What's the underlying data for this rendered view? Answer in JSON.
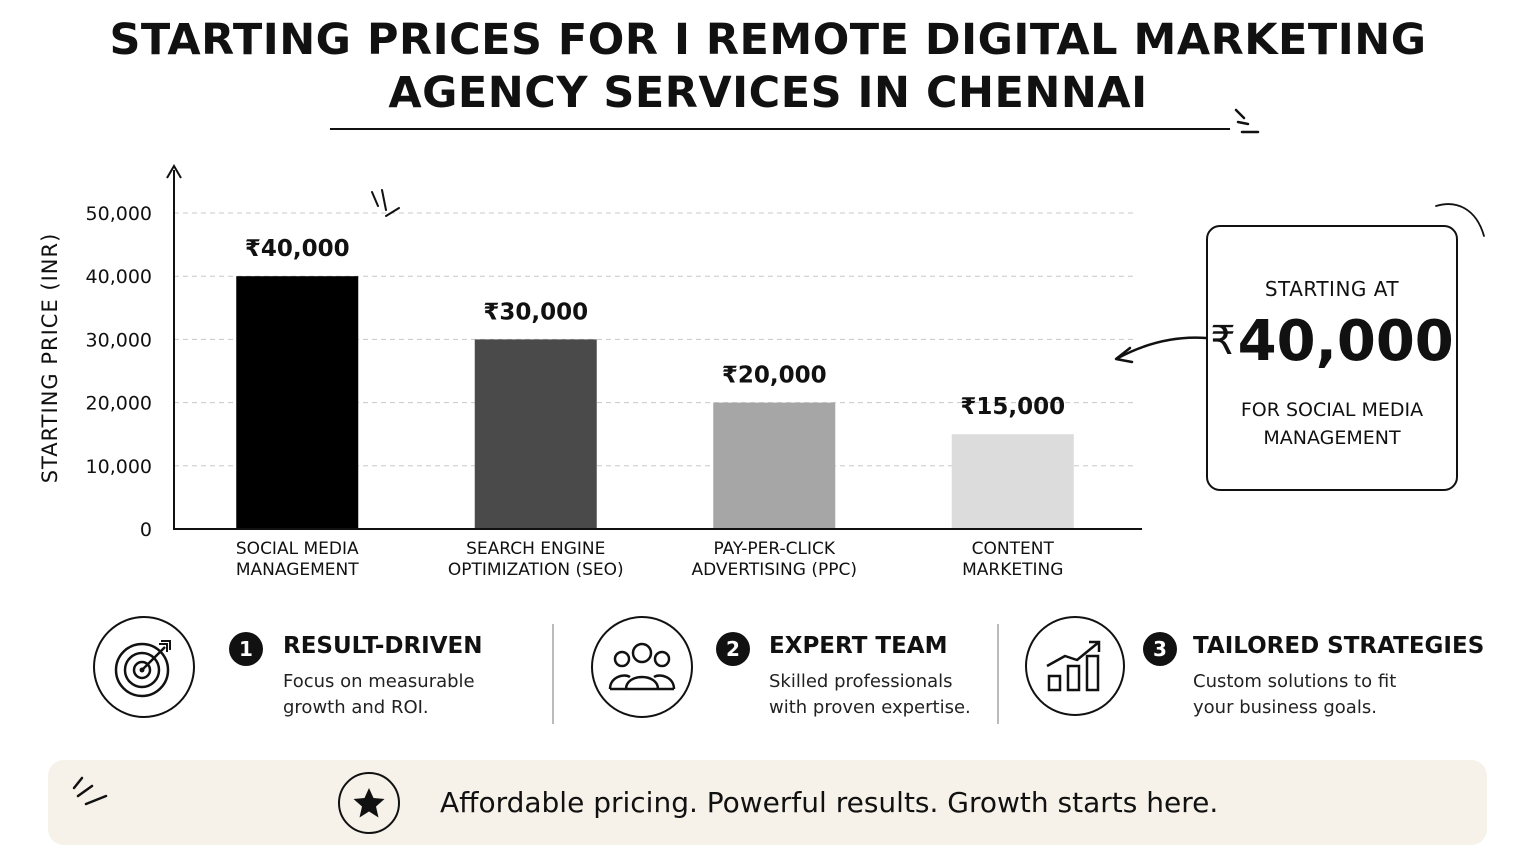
{
  "title_line1": "STARTING PRICES FOR I REMOTE DIGITAL MARKETING",
  "title_line2": "AGENCY SERVICES IN CHENNAI",
  "chart_data": {
    "type": "bar",
    "ylabel": "STARTING PRICE (INR)",
    "ylim": [
      0,
      50000
    ],
    "yticks": [
      0,
      10000,
      20000,
      30000,
      40000,
      50000
    ],
    "ytick_labels": [
      "0",
      "10,000",
      "20,000",
      "30,000",
      "40,000",
      "50,000"
    ],
    "grid": true,
    "categories": [
      [
        "SOCIAL MEDIA",
        "MANAGEMENT"
      ],
      [
        "SEARCH ENGINE",
        "OPTIMIZATION (SEO)"
      ],
      [
        "PAY-PER-CLICK",
        "ADVERTISING (PPC)"
      ],
      [
        "CONTENT",
        "MARKETING"
      ]
    ],
    "values": [
      40000,
      30000,
      20000,
      15000
    ],
    "value_labels": [
      "₹40,000",
      "₹30,000",
      "₹20,000",
      "₹15,000"
    ],
    "colors": [
      "#000000",
      "#4a4a4a",
      "#a6a6a6",
      "#dcdcdc"
    ]
  },
  "callout": {
    "pre": "STARTING AT",
    "currency": "₹",
    "amount": "40,000",
    "post": "FOR SOCIAL MEDIA MANAGEMENT"
  },
  "features": [
    {
      "number": "1",
      "title": "RESULT-DRIVEN",
      "desc": "Focus on measurable growth and ROI.",
      "icon": "target-icon"
    },
    {
      "number": "2",
      "title": "EXPERT TEAM",
      "desc": "Skilled professionals with proven expertise.",
      "icon": "team-icon"
    },
    {
      "number": "3",
      "title": "TAILORED STRATEGIES",
      "desc": "Custom solutions to fit your business goals.",
      "icon": "growth-chart-icon"
    }
  ],
  "banner": {
    "tagline": "Affordable pricing. Powerful results.  Growth starts here.",
    "icon": "star-icon"
  }
}
